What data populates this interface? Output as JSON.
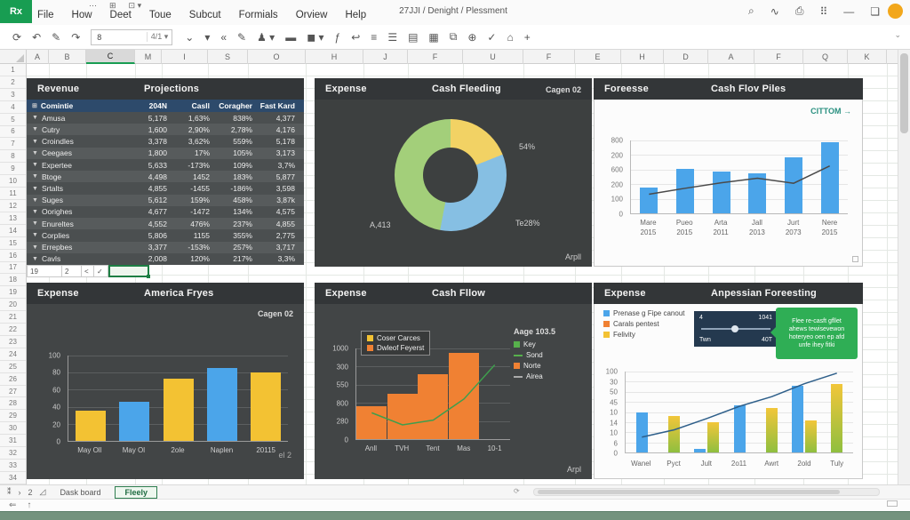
{
  "titlebar": {
    "logo": "Rx",
    "menu": [
      "File",
      "How",
      "Deet",
      "Toue",
      "Subcut",
      "Formials",
      "Orview",
      "Help"
    ],
    "doc_title": "27JJI / Denight / Plessment",
    "quick_access": [
      {
        "glyph": "⋯",
        "name": "more-icon"
      },
      {
        "glyph": "⊞",
        "name": "table-icon"
      },
      {
        "glyph": "⊡ ▾",
        "name": "window-dropdown-icon"
      }
    ],
    "right_icons": [
      {
        "glyph": "⌕",
        "name": "search-icon"
      },
      {
        "glyph": "∿",
        "name": "wave-icon"
      },
      {
        "glyph": "⎙",
        "name": "printer-icon"
      },
      {
        "glyph": "⠿",
        "name": "apps-grid-icon"
      },
      {
        "glyph": "—",
        "name": "minimize-icon"
      },
      {
        "glyph": "❏",
        "name": "restore-window-icon"
      }
    ]
  },
  "toolbar": {
    "name_box_value": "8",
    "name_box_dropdown": "4/1 ▾",
    "left_icons": [
      {
        "glyph": "⟳",
        "name": "sync-icon"
      },
      {
        "glyph": "↶",
        "name": "undo-icon"
      },
      {
        "glyph": "✎",
        "name": "edit-icon"
      },
      {
        "glyph": "↷",
        "name": "redo-icon"
      }
    ],
    "icons": [
      {
        "glyph": "⌄",
        "name": "style-dropdown-icon"
      },
      {
        "glyph": "▾",
        "name": "font-dropdown-icon"
      },
      {
        "glyph": "«",
        "name": "decrease-indent-icon"
      },
      {
        "glyph": "✎",
        "name": "pencil-icon"
      },
      {
        "glyph": "♟ ▾",
        "name": "person-dropdown-icon"
      },
      {
        "glyph": "▬",
        "name": "fill-color-icon"
      },
      {
        "glyph": "◼ ▾",
        "name": "border-dropdown-icon"
      },
      {
        "glyph": "ƒ",
        "name": "function-icon"
      },
      {
        "glyph": "↩",
        "name": "wrap-text-icon"
      },
      {
        "glyph": "≡",
        "name": "align-left-icon"
      },
      {
        "glyph": "☰",
        "name": "align-center-icon"
      },
      {
        "glyph": "▤",
        "name": "align-right-icon"
      },
      {
        "glyph": "▦",
        "name": "merge-cells-icon"
      },
      {
        "glyph": "⧉",
        "name": "copy-sheet-icon"
      },
      {
        "glyph": "⊕",
        "name": "insert-icon"
      },
      {
        "glyph": "✓",
        "name": "check-icon"
      },
      {
        "glyph": "⌂",
        "name": "home-icon"
      },
      {
        "glyph": "+",
        "name": "add-icon"
      }
    ],
    "right_icon": {
      "glyph": "⌄",
      "name": "collapse-ribbon-icon"
    }
  },
  "grid": {
    "columns": [
      "A",
      "B",
      "C",
      "M",
      "I",
      "S",
      "O",
      "H",
      "J",
      "F",
      "U",
      "F",
      "E",
      "H",
      "D",
      "A",
      "F",
      "Q",
      "K"
    ],
    "selected_column_index": 2,
    "row_numbers": [
      "1",
      "2",
      "3",
      "4",
      "5",
      "6",
      "7",
      "8",
      "9",
      "10",
      "11",
      "12",
      "13",
      "14",
      "15",
      "16",
      "17",
      "18",
      "19",
      "20",
      "21",
      "22",
      "23",
      "24",
      "25",
      "26",
      "27",
      "28",
      "29",
      "30",
      "31",
      "32",
      "33",
      "34"
    ],
    "mini_cells": [
      "19",
      "2",
      "<",
      "✓"
    ]
  },
  "panels": {
    "revenue": {
      "title": "Revenue",
      "subtitle": "Projections",
      "header_icon": "⊞",
      "columns": [
        "Comintie",
        "204N",
        "Casll",
        "Coragher",
        "Fast Kard"
      ],
      "rows": [
        [
          "Amusa",
          "5,178",
          "1,63%",
          "838%",
          "4,377"
        ],
        [
          "Cutry",
          "1,600",
          "2,90%",
          "2,78%",
          "4,176"
        ],
        [
          "Croindles",
          "3,378",
          "3,62%",
          "559%",
          "5,178"
        ],
        [
          "Ceegaes",
          "1,800",
          "17%",
          "105%",
          "3,173"
        ],
        [
          "Expertee",
          "5,633",
          "-173%",
          "109%",
          "3,7%"
        ],
        [
          "Btoge",
          "4,498",
          "1452",
          "183%",
          "5,877"
        ],
        [
          "Srtalts",
          "4,855",
          "-1455",
          "-186%",
          "3,598"
        ],
        [
          "Suges",
          "5,612",
          "159%",
          "458%",
          "3,87k"
        ],
        [
          "Oorighes",
          "4,677",
          "-1472",
          "134%",
          "4,575"
        ],
        [
          "Enureltes",
          "4,552",
          "476%",
          "237%",
          "4,855"
        ],
        [
          "Corplies",
          "5,806",
          "1155",
          "355%",
          "2,775"
        ],
        [
          "Errepbes",
          "3,377",
          "-153%",
          "257%",
          "3,717"
        ],
        [
          "Cavls",
          "2,008",
          "120%",
          "217%",
          "3,3%"
        ]
      ]
    },
    "donut": {
      "title": "Expense",
      "subtitle": "Cash Fleeding",
      "corner_label": "Cagen 02",
      "footer_label": "Arpll"
    },
    "forecast": {
      "title": "Foreesse",
      "subtitle": "Cash Flov Piles",
      "corner_label": "CITTOM →"
    },
    "america": {
      "title": "Expense",
      "subtitle": "America Fryes",
      "corner_label": "Cagen 02",
      "footer_label": "el 2"
    },
    "cashflow": {
      "title": "Expense",
      "subtitle": "Cash Fllow",
      "footer_label": "Arpl",
      "legend_title": "Aage 103.5"
    },
    "anpessian": {
      "title": "Expense",
      "subtitle": "Anpessian Foreesting",
      "slider": {
        "top_left": "4",
        "top_right": "1041",
        "bottom_left": "Twn",
        "bottom_right": "40T"
      },
      "callout_lines": [
        "Flee re-casft gfllet",
        "ahews tewisevewon",
        "hoteryeo oen ep afd",
        "unfe ihey fitki"
      ]
    }
  },
  "chart_data": [
    {
      "id": "donut",
      "type": "pie",
      "title": "Cash Fleeding",
      "slices": [
        {
          "label": "54%",
          "value": 19,
          "color": "#f2d264"
        },
        {
          "label": "Te28%",
          "value": 34,
          "color": "#86bfe3"
        },
        {
          "label": "A,413",
          "value": 47,
          "color": "#a3cf7a"
        }
      ]
    },
    {
      "id": "forecast",
      "type": "bar",
      "title": "Cash Flov Piles",
      "categories": [
        [
          "Mare",
          "2015"
        ],
        [
          "Pueo",
          "2015"
        ],
        [
          "Arta",
          "2011"
        ],
        [
          "Jall",
          "2013"
        ],
        [
          "Jurt",
          "2073"
        ],
        [
          "Nere",
          "2015"
        ]
      ],
      "bars": [
        280,
        490,
        455,
        435,
        610,
        785
      ],
      "line": [
        210,
        275,
        335,
        385,
        330,
        520
      ],
      "ticks": [
        "800",
        "200",
        "600",
        "200",
        "100",
        "0"
      ],
      "ylim": [
        0,
        800
      ],
      "bar_color": "#4ba5ea",
      "line_color": "#4a4a4a",
      "legend_position": "none",
      "grid": true
    },
    {
      "id": "america",
      "type": "bar",
      "title": "America Fryes",
      "categories": [
        "May Oll",
        "May Ol",
        "2ole",
        "Naplen",
        "20115"
      ],
      "values": [
        35,
        46,
        73,
        85,
        80
      ],
      "colors": [
        "#f3c233",
        "#4ba5ea",
        "#f3c233",
        "#4ba5ea",
        "#f3c233"
      ],
      "ticks": [
        "100",
        "80",
        "60",
        "40",
        "20",
        "0"
      ],
      "ylim": [
        0,
        100
      ],
      "grid": true
    },
    {
      "id": "cashflow",
      "type": "bar",
      "title": "Cash Fllow",
      "categories": [
        "Anll",
        "TVH",
        "Tent",
        "Mas",
        "10-1"
      ],
      "bars": [
        385,
        525,
        755,
        1000,
        0
      ],
      "line": [
        305,
        165,
        220,
        465,
        860
      ],
      "ticks": [
        "1000",
        "300",
        "550",
        "800",
        "280",
        "0"
      ],
      "ylim": [
        0,
        1050
      ],
      "bar_color": "#f08133",
      "line_color": "#3f9e4d",
      "legend_box": [
        {
          "label": "Coser Carces",
          "color": "#f3c233",
          "shape": "square"
        },
        {
          "label": "Dwleof Feyerst",
          "color": "#f08133",
          "shape": "square"
        }
      ],
      "right_legend": [
        {
          "label": "Key",
          "color": "#57b04c",
          "shape": "square"
        },
        {
          "label": "Sond",
          "color": "#57b04c",
          "shape": "line"
        },
        {
          "label": "Norte",
          "color": "#f08133",
          "shape": "square"
        },
        {
          "label": "Airea",
          "color": "#aaaaaa",
          "shape": "line"
        }
      ],
      "grid": true
    },
    {
      "id": "anpessian",
      "type": "bar",
      "title": "Anpessian Foreesting",
      "categories": [
        "Wanel",
        "Pyct",
        "Jult",
        "2o11",
        "Awrt",
        "2old",
        "Tuly"
      ],
      "series": [
        {
          "name": "Prenase g Fipe canout",
          "values": [
            50,
            0,
            4,
            58,
            0,
            82,
            0
          ],
          "color": "#4ba5ea"
        },
        {
          "name": "Felivity",
          "values": [
            0,
            45,
            37,
            0,
            55,
            40,
            85
          ],
          "color": "gradient"
        }
      ],
      "line": [
        19,
        28,
        42,
        57,
        69,
        85,
        98
      ],
      "ticks": [
        "100",
        "30",
        "50",
        "45",
        "10",
        "14",
        "10",
        "6",
        "0"
      ],
      "ylim": [
        0,
        100
      ],
      "line_color": "#2e5f8a",
      "legend": [
        {
          "label": "Prenase g Fipe canout",
          "color": "#4ba5ea"
        },
        {
          "label": "Carals pentest",
          "color": "#f08133"
        },
        {
          "label": "Felivity",
          "color": "#f3c233"
        }
      ],
      "grid": true
    }
  ],
  "sheet_tabs": {
    "nav_icons": [
      {
        "glyph": "⁑",
        "name": "sheet-options-icon"
      },
      {
        "glyph": "›",
        "name": "next-sheet-icon"
      },
      {
        "glyph": "2",
        "name": "sheet-count-label"
      },
      {
        "glyph": "◿",
        "name": "tab-resize-icon"
      }
    ],
    "tabs": [
      {
        "label": "Dask board",
        "active": false
      },
      {
        "label": "Fleely",
        "active": true
      }
    ]
  },
  "bottom": {
    "subrow_icons": [
      {
        "glyph": "⇐",
        "name": "back-arrow-icon"
      },
      {
        "glyph": "↑",
        "name": "up-arrow-icon"
      }
    ]
  },
  "colors": {
    "accent_green": "#189d52",
    "status_bar_green": "#74937e",
    "panel_dark": "#424546",
    "panel_header_dark": "#333638",
    "table_header_blue": "#2d4a6b",
    "bar_blue": "#4ba5ea",
    "bar_orange": "#f08133",
    "bar_yellow": "#f3c233",
    "callout_green": "#2fae55",
    "slider_navy": "#24394f"
  }
}
